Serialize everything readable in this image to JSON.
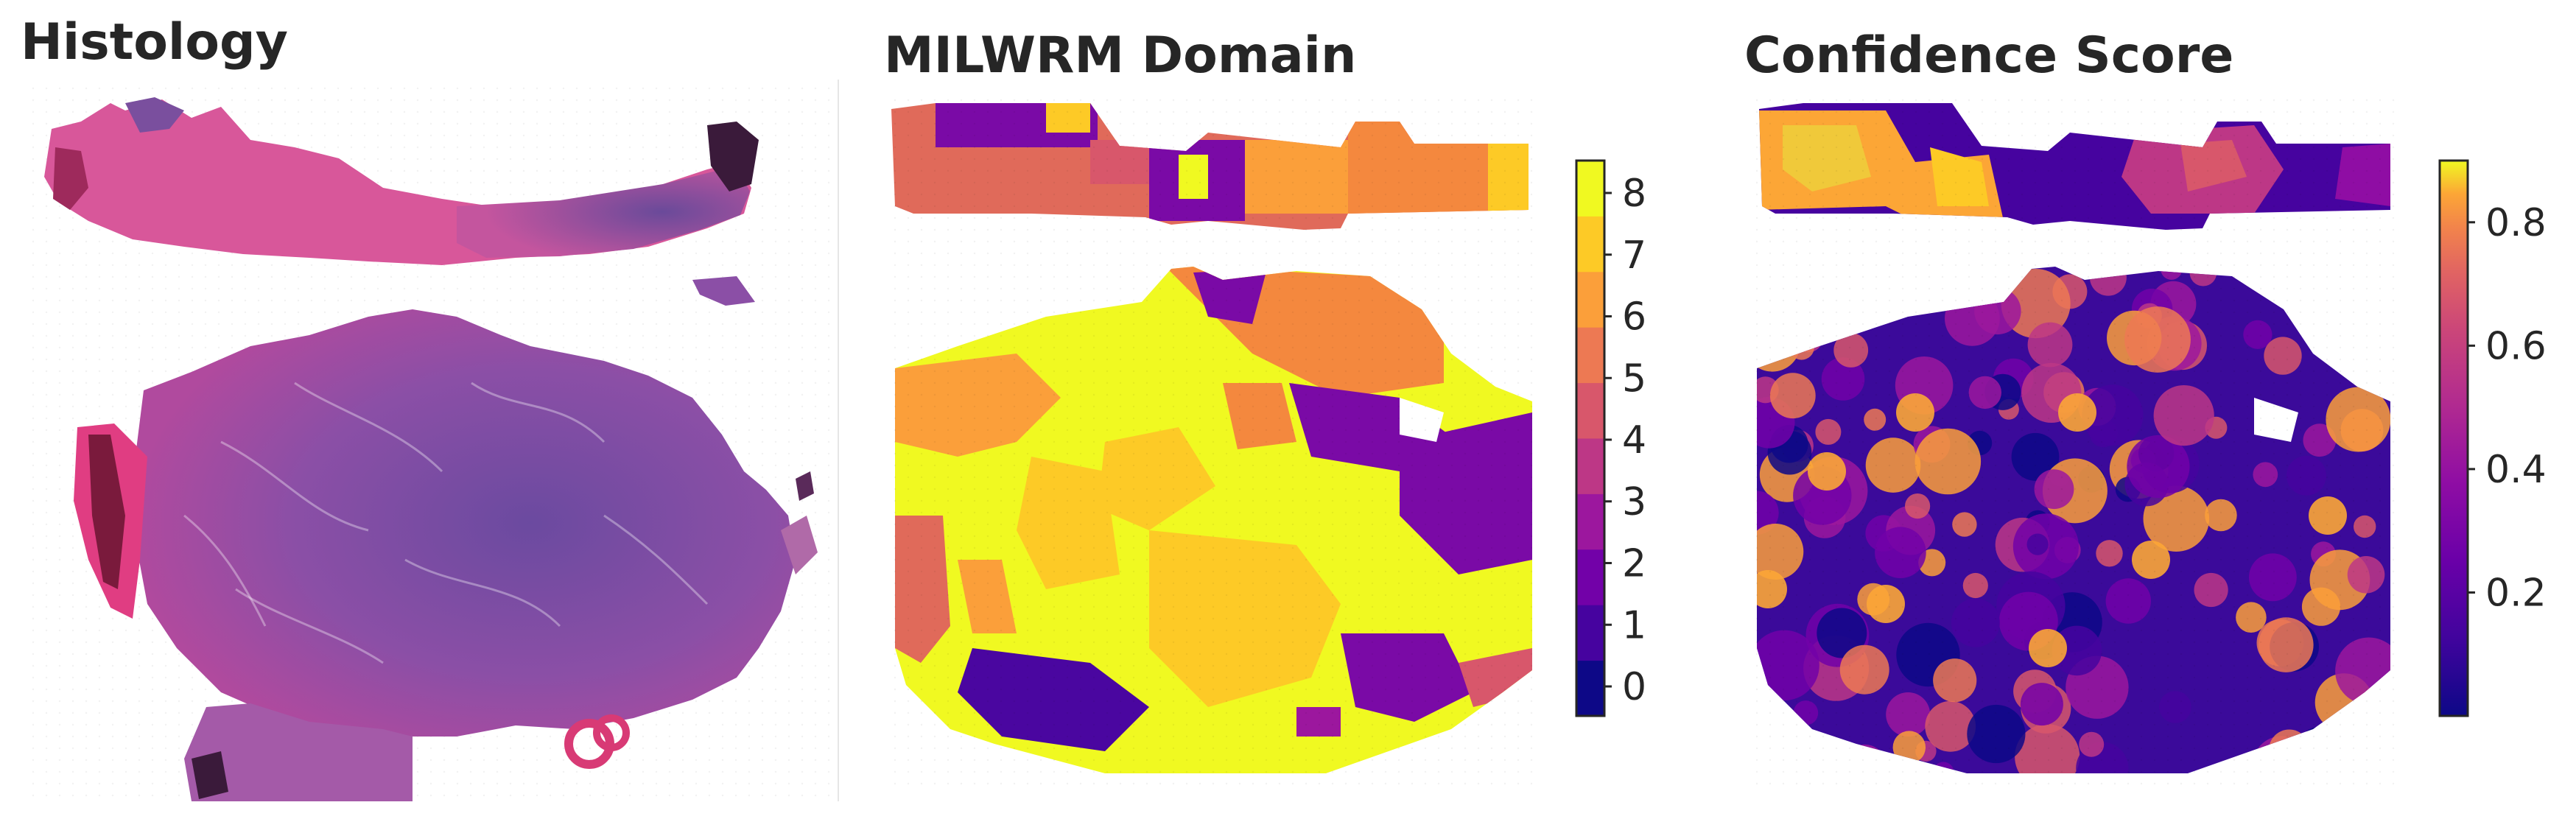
{
  "panels": [
    {
      "title": "Histology"
    },
    {
      "title": "MILWRM Domain"
    },
    {
      "title": "Confidence Score"
    }
  ],
  "domain_colorbar": {
    "ticks": [
      "0",
      "1",
      "2",
      "3",
      "4",
      "5",
      "6",
      "7",
      "8"
    ],
    "colors": [
      "#0d0887",
      "#46039f",
      "#7201a8",
      "#9c179e",
      "#bd3786",
      "#d8576b",
      "#ed7953",
      "#fb9f3a",
      "#fdca26",
      "#f0f921"
    ]
  },
  "confidence_colorbar": {
    "ticks": [
      "0.2",
      "0.4",
      "0.6",
      "0.8"
    ],
    "range": [
      0.0,
      0.9
    ]
  }
}
